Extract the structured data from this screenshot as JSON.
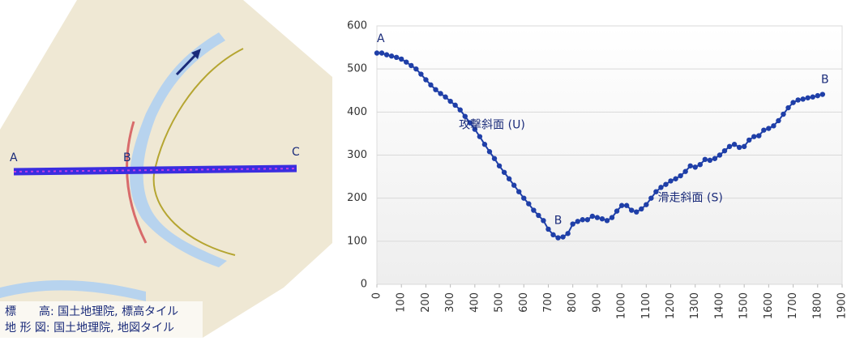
{
  "map": {
    "labels": [
      "A",
      "B",
      "C"
    ],
    "credits": [
      "標　　高: 国土地理院, 標高タイル",
      "地 形 図: 国土地理院, 地図タイル"
    ]
  },
  "chart_data": {
    "type": "line",
    "x": [
      0,
      20,
      40,
      60,
      80,
      100,
      120,
      140,
      160,
      180,
      200,
      220,
      240,
      260,
      280,
      300,
      320,
      340,
      360,
      380,
      400,
      420,
      440,
      460,
      480,
      500,
      520,
      540,
      560,
      580,
      600,
      620,
      640,
      660,
      680,
      700,
      720,
      740,
      760,
      780,
      800,
      820,
      840,
      860,
      880,
      900,
      920,
      940,
      960,
      980,
      1000,
      1020,
      1040,
      1060,
      1080,
      1100,
      1120,
      1140,
      1160,
      1180,
      1200,
      1220,
      1240,
      1260,
      1280,
      1300,
      1320,
      1340,
      1360,
      1380,
      1400,
      1420,
      1440,
      1460,
      1480,
      1500,
      1520,
      1540,
      1560,
      1580,
      1600,
      1620,
      1640,
      1660,
      1680,
      1700,
      1720,
      1740,
      1760,
      1780,
      1800,
      1820
    ],
    "series": [
      {
        "name": "elevation",
        "color": "#1f3fa8",
        "values": [
          537,
          537,
          533,
          530,
          527,
          523,
          516,
          508,
          500,
          488,
          475,
          463,
          452,
          443,
          435,
          425,
          416,
          405,
          390,
          375,
          360,
          343,
          325,
          308,
          292,
          275,
          260,
          245,
          230,
          215,
          200,
          187,
          172,
          160,
          148,
          128,
          115,
          108,
          110,
          118,
          140,
          146,
          150,
          150,
          158,
          155,
          152,
          148,
          155,
          170,
          183,
          183,
          172,
          168,
          175,
          185,
          200,
          215,
          225,
          232,
          240,
          245,
          252,
          262,
          275,
          272,
          278,
          290,
          288,
          292,
          300,
          310,
          320,
          325,
          318,
          320,
          335,
          343,
          345,
          358,
          362,
          368,
          380,
          395,
          410,
          422,
          428,
          430,
          433,
          435,
          438,
          441
        ]
      }
    ],
    "xlim": [
      0,
      1900
    ],
    "xticks": [
      0,
      100,
      200,
      300,
      400,
      500,
      600,
      700,
      800,
      900,
      1000,
      1100,
      1200,
      1300,
      1400,
      1500,
      1600,
      1700,
      1800,
      1900
    ],
    "ylim": [
      0,
      600
    ],
    "yticks": [
      0,
      100,
      200,
      300,
      400,
      500,
      600
    ],
    "grid": true,
    "annotations": [
      {
        "text": "A",
        "x": 0,
        "y": 570
      },
      {
        "text": "攻撃斜面 (U)",
        "x": 470,
        "y": 370
      },
      {
        "text": "B",
        "x": 740,
        "y": 148
      },
      {
        "text": "滑走斜面 (S)",
        "x": 1280,
        "y": 200
      },
      {
        "text": "B",
        "x": 1830,
        "y": 475
      }
    ]
  }
}
